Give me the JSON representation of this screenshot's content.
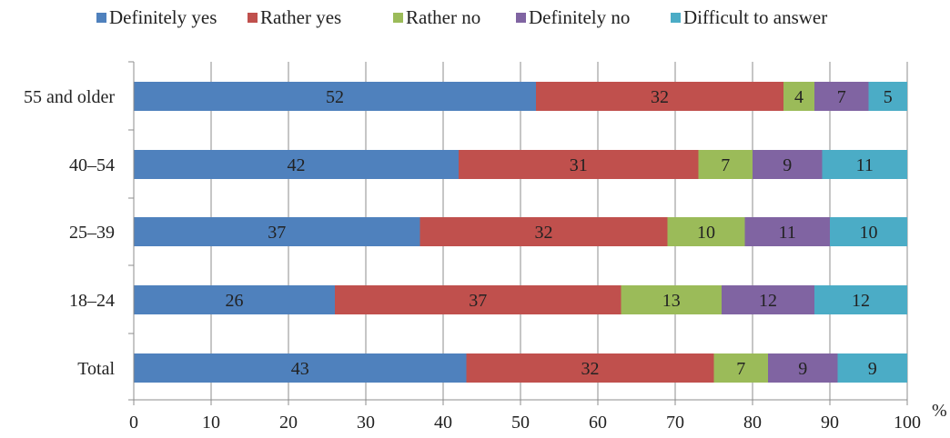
{
  "chart_data": {
    "type": "bar",
    "orientation": "horizontal",
    "stacked": true,
    "categories": [
      "55 and older",
      "40–54",
      "25–39",
      "18–24",
      "Total"
    ],
    "series": [
      {
        "name": "Definitely yes",
        "color": "#4f81bd",
        "values": [
          52,
          42,
          37,
          26,
          43
        ]
      },
      {
        "name": "Rather yes",
        "color": "#c0504d",
        "values": [
          32,
          31,
          32,
          37,
          32
        ]
      },
      {
        "name": "Rather no",
        "color": "#9bbb59",
        "values": [
          4,
          7,
          10,
          13,
          7
        ]
      },
      {
        "name": "Definitely no",
        "color": "#8064a2",
        "values": [
          7,
          9,
          11,
          12,
          9
        ]
      },
      {
        "name": "Difficult to answer",
        "color": "#4bacc6",
        "values": [
          5,
          11,
          10,
          12,
          9
        ]
      }
    ],
    "xlim": [
      0,
      100
    ],
    "xticks": [
      "0",
      "10",
      "20",
      "30",
      "40",
      "50",
      "60",
      "70",
      "80",
      "90",
      "100"
    ],
    "x_unit": "%",
    "grid": "vertical",
    "legend_position": "top"
  }
}
